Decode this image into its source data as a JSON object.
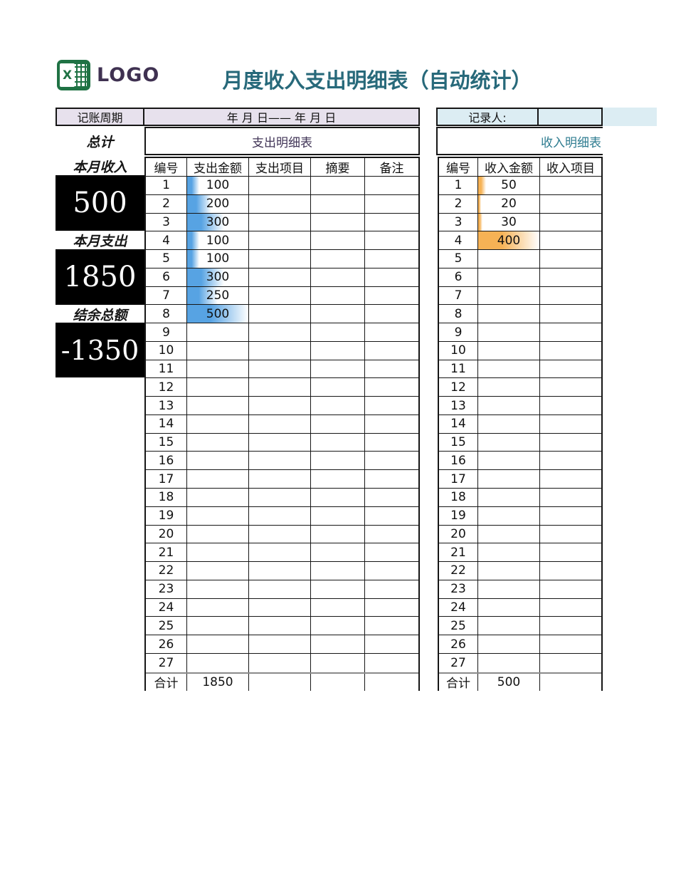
{
  "logo": {
    "text": "LOGO",
    "icon": "excel-icon"
  },
  "title": "月度收入支出明细表（自动统计）",
  "period": {
    "label": "记账周期",
    "value": "年  月  日——  年  月  日"
  },
  "recorder": {
    "label": "记录人:",
    "value": ""
  },
  "summary": {
    "total_label": "总计",
    "income_label": "本月收入",
    "income_value": "500",
    "expense_label": "本月支出",
    "expense_value": "1850",
    "balance_label": "结余总额",
    "balance_value": "-1350"
  },
  "colors": {
    "title_teal": "#27697a",
    "expense_title_purple": "#413557",
    "income_title_teal": "#2e7c90",
    "period_lavender": "#e7e1ed",
    "recorder_lightblue": "#dcedf3",
    "logo_green": "#1f7244",
    "logo_text_purple": "#3f3151",
    "summary_box_black": "#000000",
    "expense_bar_blue": "#57a3e3",
    "income_bar_orange": "#f6b255"
  },
  "expense_table": {
    "section_title": "支出明细表",
    "headers": [
      "编号",
      "支出金额",
      "支出项目",
      "摘要",
      "备注"
    ],
    "bar_max": 500,
    "bar_color": "#57a3e3",
    "rows": [
      {
        "no": "1",
        "amount": "100"
      },
      {
        "no": "2",
        "amount": "200"
      },
      {
        "no": "3",
        "amount": "300"
      },
      {
        "no": "4",
        "amount": "100"
      },
      {
        "no": "5",
        "amount": "100"
      },
      {
        "no": "6",
        "amount": "300"
      },
      {
        "no": "7",
        "amount": "250"
      },
      {
        "no": "8",
        "amount": "500"
      },
      {
        "no": "9",
        "amount": ""
      },
      {
        "no": "10",
        "amount": ""
      },
      {
        "no": "11",
        "amount": ""
      },
      {
        "no": "12",
        "amount": ""
      },
      {
        "no": "13",
        "amount": ""
      },
      {
        "no": "14",
        "amount": ""
      },
      {
        "no": "15",
        "amount": ""
      },
      {
        "no": "16",
        "amount": ""
      },
      {
        "no": "17",
        "amount": ""
      },
      {
        "no": "18",
        "amount": ""
      },
      {
        "no": "19",
        "amount": ""
      },
      {
        "no": "20",
        "amount": ""
      },
      {
        "no": "21",
        "amount": ""
      },
      {
        "no": "22",
        "amount": ""
      },
      {
        "no": "23",
        "amount": ""
      },
      {
        "no": "24",
        "amount": ""
      },
      {
        "no": "25",
        "amount": ""
      },
      {
        "no": "26",
        "amount": ""
      },
      {
        "no": "27",
        "amount": ""
      }
    ],
    "total_label": "合计",
    "total": "1850"
  },
  "income_table": {
    "section_title": "收入明细表",
    "headers": [
      "编号",
      "收入金额",
      "收入项目"
    ],
    "bar_max": 400,
    "bar_color": "#f6b255",
    "rows": [
      {
        "no": "1",
        "amount": "50"
      },
      {
        "no": "2",
        "amount": "20"
      },
      {
        "no": "3",
        "amount": "30"
      },
      {
        "no": "4",
        "amount": "400"
      },
      {
        "no": "5",
        "amount": ""
      },
      {
        "no": "6",
        "amount": ""
      },
      {
        "no": "7",
        "amount": ""
      },
      {
        "no": "8",
        "amount": ""
      },
      {
        "no": "9",
        "amount": ""
      },
      {
        "no": "10",
        "amount": ""
      },
      {
        "no": "11",
        "amount": ""
      },
      {
        "no": "12",
        "amount": ""
      },
      {
        "no": "13",
        "amount": ""
      },
      {
        "no": "14",
        "amount": ""
      },
      {
        "no": "15",
        "amount": ""
      },
      {
        "no": "16",
        "amount": ""
      },
      {
        "no": "17",
        "amount": ""
      },
      {
        "no": "18",
        "amount": ""
      },
      {
        "no": "19",
        "amount": ""
      },
      {
        "no": "20",
        "amount": ""
      },
      {
        "no": "21",
        "amount": ""
      },
      {
        "no": "22",
        "amount": ""
      },
      {
        "no": "23",
        "amount": ""
      },
      {
        "no": "24",
        "amount": ""
      },
      {
        "no": "25",
        "amount": ""
      },
      {
        "no": "26",
        "amount": ""
      },
      {
        "no": "27",
        "amount": ""
      }
    ],
    "total_label": "合计",
    "total": "500"
  }
}
